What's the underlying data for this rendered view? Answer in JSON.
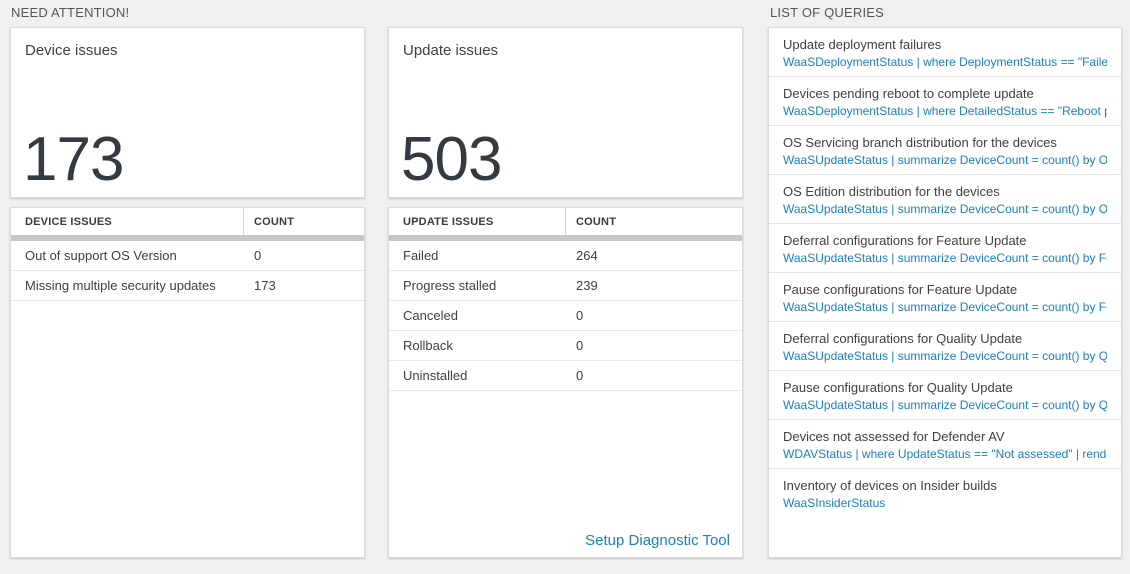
{
  "colors": {
    "accent_blue": "#1a7ec6",
    "big_number_color": "#333a42",
    "background": "#f0f0f0",
    "thick_divider": "#c5c8ca"
  },
  "need_attention": {
    "section_title": "NEED ATTENTION!",
    "device_card": {
      "title": "Device issues",
      "count": "173",
      "table": {
        "headers": [
          "DEVICE ISSUES",
          "COUNT"
        ],
        "rows": [
          {
            "label": "Out of support OS Version",
            "count": "0"
          },
          {
            "label": "Missing multiple security updates",
            "count": "173"
          }
        ]
      }
    },
    "update_card": {
      "title": "Update issues",
      "count": "503",
      "table": {
        "headers": [
          "UPDATE ISSUES",
          "COUNT"
        ],
        "rows": [
          {
            "label": "Failed",
            "count": "264"
          },
          {
            "label": "Progress stalled",
            "count": "239"
          },
          {
            "label": "Canceled",
            "count": "0"
          },
          {
            "label": "Rollback",
            "count": "0"
          },
          {
            "label": "Uninstalled",
            "count": "0"
          }
        ]
      },
      "footer_link": "Setup Diagnostic Tool"
    }
  },
  "queries": {
    "section_title": "LIST OF QUERIES",
    "items": [
      {
        "title": "Update deployment failures",
        "query": "WaaSDeploymentStatus | where DeploymentStatus == \"Failed\" |..."
      },
      {
        "title": "Devices pending reboot to complete update",
        "query": "WaaSDeploymentStatus | where DetailedStatus == \"Reboot pend..."
      },
      {
        "title": "OS Servicing branch distribution for the devices",
        "query": "WaaSUpdateStatus | summarize DeviceCount = count() by OSSer..."
      },
      {
        "title": "OS Edition distribution for the devices",
        "query": "WaaSUpdateStatus | summarize DeviceCount = count() by OSEdit..."
      },
      {
        "title": "Deferral configurations for Feature Update",
        "query": "WaaSUpdateStatus | summarize DeviceCount = count() by Featur..."
      },
      {
        "title": "Pause configurations for Feature Update",
        "query": "WaaSUpdateStatus | summarize DeviceCount = count() by Featur..."
      },
      {
        "title": "Deferral configurations for Quality Update",
        "query": "WaaSUpdateStatus | summarize DeviceCount = count() by Qualit..."
      },
      {
        "title": "Pause configurations for Quality Update",
        "query": "WaaSUpdateStatus | summarize DeviceCount = count() by Qualit..."
      },
      {
        "title": "Devices not assessed for Defender AV",
        "query": "WDAVStatus | where UpdateStatus == \"Not assessed\" | render ta..."
      },
      {
        "title": "Inventory of devices on Insider builds",
        "query": "WaaSInsiderStatus"
      }
    ]
  }
}
